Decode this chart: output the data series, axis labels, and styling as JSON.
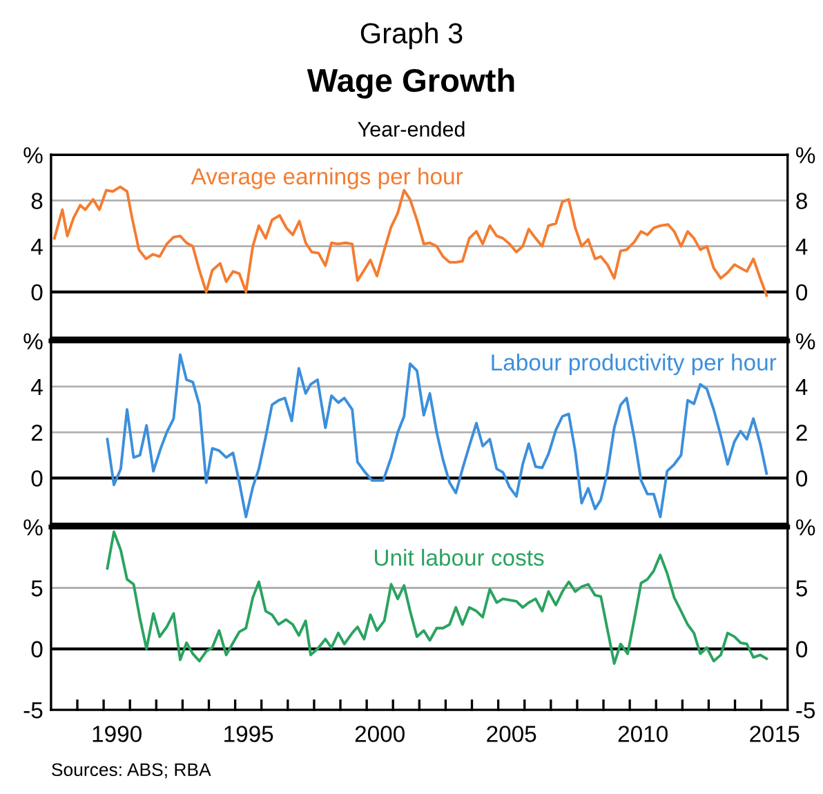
{
  "chart_data": [
    {
      "type": "line",
      "title": "Wage Growth",
      "subtitle": "Year-ended",
      "annotations": [
        "Graph 3"
      ],
      "xlim": [
        1988,
        2016
      ],
      "tick_labels": "y",
      "ylim": [
        -4,
        12
      ],
      "yticks": [
        0,
        4,
        8,
        {
          "value": 12,
          "label": "%"
        }
      ],
      "y2lim": [
        -4,
        12
      ],
      "y2ticks": [
        0,
        4,
        8,
        {
          "value": 12,
          "label": "%"
        }
      ],
      "grid": "y",
      "ref_lines": [
        {
          "axis": "y",
          "value": 0,
          "color": "#000000"
        }
      ],
      "series": [
        {
          "name": "Average earnings per hour",
          "color": "#f47c30",
          "x": [
            1988.13,
            1988.43,
            1988.62,
            1988.86,
            1989.11,
            1989.3,
            1989.6,
            1989.84,
            1990.1,
            1990.35,
            1990.63,
            1990.89,
            1991.08,
            1991.34,
            1991.61,
            1991.87,
            1992.13,
            1992.4,
            1992.66,
            1992.91,
            1993.15,
            1993.39,
            1993.64,
            1993.9,
            1994.13,
            1994.43,
            1994.66,
            1994.92,
            1995.16,
            1995.41,
            1995.67,
            1995.9,
            1996.16,
            1996.4,
            1996.69,
            1996.95,
            1997.19,
            1997.44,
            1997.68,
            1997.91,
            1998.17,
            1998.43,
            1998.66,
            1998.9,
            1999.2,
            1999.45,
            1999.65,
            1999.9,
            2000.14,
            2000.39,
            2000.67,
            2000.93,
            2001.18,
            2001.42,
            2001.65,
            2001.91,
            2002.17,
            2002.4,
            2002.66,
            2002.9,
            2003.15,
            2003.39,
            2003.64,
            2003.9,
            2004.17,
            2004.41,
            2004.68,
            2004.94,
            2005.18,
            2005.43,
            2005.69,
            2005.93,
            2006.16,
            2006.42,
            2006.67,
            2006.91,
            2007.19,
            2007.44,
            2007.68,
            2007.93,
            2008.17,
            2008.42,
            2008.68,
            2008.9,
            2009.15,
            2009.41,
            2009.65,
            2009.88,
            2010.18,
            2010.43,
            2010.67,
            2010.91,
            2011.16,
            2011.46,
            2011.69,
            2011.95,
            2012.2,
            2012.44,
            2012.68,
            2012.93,
            2013.19,
            2013.46,
            2013.72,
            2013.98,
            2014.21,
            2014.45,
            2014.7,
            2014.96,
            2015.2
          ],
          "values": [
            4.7,
            7.2,
            4.9,
            6.5,
            7.6,
            7.2,
            8.1,
            7.2,
            8.9,
            8.8,
            9.2,
            8.8,
            6.5,
            3.7,
            2.9,
            3.3,
            3.1,
            4.2,
            4.8,
            4.9,
            4.3,
            4.0,
            1.9,
            0,
            1.9,
            2.5,
            0.9,
            1.8,
            1.6,
            0,
            4.0,
            5.8,
            4.7,
            6.3,
            6.7,
            5.6,
            5.0,
            6.2,
            4.3,
            3.5,
            3.4,
            2.3,
            4.3,
            4.2,
            4.3,
            4.2,
            1.0,
            1.9,
            2.8,
            1.4,
            3.7,
            5.7,
            6.9,
            8.9,
            8.1,
            6.3,
            4.2,
            4.3,
            4.0,
            3.1,
            2.6,
            2.6,
            2.7,
            4.7,
            5.3,
            4.2,
            5.8,
            4.9,
            4.7,
            4.2,
            3.5,
            4.0,
            5.5,
            4.7,
            4.0,
            5.8,
            6.0,
            7.9,
            8.1,
            5.6,
            4.0,
            4.6,
            2.9,
            3.1,
            2.4,
            1.2,
            3.6,
            3.7,
            4.4,
            5.3,
            5.0,
            5.6,
            5.8,
            5.9,
            5.3,
            4.0,
            5.3,
            4.7,
            3.7,
            4.0,
            2.1,
            1.2,
            1.7,
            2.4,
            2.1,
            1.8,
            2.9,
            1.2,
            -0.3
          ]
        }
      ]
    },
    {
      "type": "line",
      "xlim": [
        1988,
        2016
      ],
      "tick_labels": "y",
      "ylim": [
        -2,
        6
      ],
      "yticks": [
        0,
        2,
        4,
        {
          "value": 6,
          "label": "%"
        }
      ],
      "y2lim": [
        -2,
        6
      ],
      "y2ticks": [
        0,
        2,
        4,
        {
          "value": 6,
          "label": "%"
        }
      ],
      "grid": "y",
      "ref_lines": [
        {
          "axis": "y",
          "value": 0,
          "color": "#000000"
        }
      ],
      "series": [
        {
          "name": "Labour productivity per hour",
          "color": "#3c8fdc",
          "x": [
            1990.14,
            1990.39,
            1990.65,
            1990.89,
            1991.14,
            1991.38,
            1991.63,
            1991.89,
            1992.17,
            1992.4,
            1992.66,
            1992.91,
            1993.15,
            1993.39,
            1993.64,
            1993.9,
            1994.13,
            1994.39,
            1994.66,
            1994.92,
            1995.16,
            1995.41,
            1995.67,
            1995.9,
            1996.16,
            1996.4,
            1996.65,
            1996.89,
            1997.15,
            1997.42,
            1997.68,
            1997.87,
            1998.13,
            1998.43,
            1998.66,
            1998.92,
            1999.15,
            1999.45,
            1999.65,
            1999.94,
            2000.2,
            2000.63,
            2000.93,
            2001.18,
            2001.42,
            2001.65,
            2001.91,
            2002.17,
            2002.4,
            2002.66,
            2002.9,
            2003.15,
            2003.39,
            2003.64,
            2003.9,
            2004.17,
            2004.41,
            2004.68,
            2004.94,
            2005.18,
            2005.43,
            2005.69,
            2005.93,
            2006.16,
            2006.42,
            2006.67,
            2006.91,
            2007.19,
            2007.44,
            2007.68,
            2007.93,
            2008.17,
            2008.42,
            2008.68,
            2008.9,
            2009.15,
            2009.41,
            2009.65,
            2009.88,
            2010.18,
            2010.43,
            2010.67,
            2010.91,
            2011.16,
            2011.42,
            2011.69,
            2011.95,
            2012.2,
            2012.44,
            2012.68,
            2012.93,
            2013.19,
            2013.46,
            2013.72,
            2013.98,
            2014.21,
            2014.45,
            2014.7,
            2014.96,
            2015.2
          ],
          "values": [
            1.7,
            -0.3,
            0.4,
            3.0,
            0.9,
            1.0,
            2.3,
            0.3,
            1.3,
            2.0,
            2.6,
            5.4,
            4.3,
            4.2,
            3.2,
            -0.2,
            1.3,
            1.2,
            0.9,
            1.1,
            -0.2,
            -1.7,
            -0.4,
            0.4,
            1.8,
            3.2,
            3.4,
            3.5,
            2.5,
            4.8,
            3.7,
            4.1,
            4.3,
            2.2,
            3.6,
            3.3,
            3.5,
            3.0,
            0.7,
            0.25,
            -0.1,
            -0.1,
            0.9,
            2.0,
            2.7,
            5.0,
            4.7,
            2.75,
            3.7,
            2.0,
            0.8,
            -0.2,
            -0.65,
            0.4,
            1.4,
            2.4,
            1.4,
            1.7,
            0.4,
            0.25,
            -0.4,
            -0.8,
            0.6,
            1.5,
            0.5,
            0.45,
            1.05,
            2.1,
            2.7,
            2.8,
            1.15,
            -1.1,
            -0.45,
            -1.35,
            -0.95,
            0.25,
            2.2,
            3.2,
            3.5,
            1.7,
            -0.1,
            -0.7,
            -0.7,
            -1.7,
            0.3,
            0.6,
            1.0,
            3.4,
            3.25,
            4.1,
            3.9,
            3.0,
            1.85,
            0.6,
            1.6,
            2.05,
            1.7,
            2.6,
            1.5,
            0.2
          ]
        }
      ]
    },
    {
      "type": "line",
      "annotations": [
        "Sources: ABS; RBA"
      ],
      "xlim": [
        1988,
        2016
      ],
      "xticks": [
        {
          "value": 1989,
          "label": null
        },
        {
          "value": 1990,
          "label": null
        },
        {
          "value": 1990.5,
          "label": "1990"
        },
        {
          "value": 1991,
          "label": null
        },
        {
          "value": 1992,
          "label": null
        },
        {
          "value": 1993,
          "label": null
        },
        {
          "value": 1994,
          "label": null
        },
        {
          "value": 1995,
          "label": null
        },
        {
          "value": 1995.5,
          "label": "1995"
        },
        {
          "value": 1996,
          "label": null
        },
        {
          "value": 1997,
          "label": null
        },
        {
          "value": 1998,
          "label": null
        },
        {
          "value": 1999,
          "label": null
        },
        {
          "value": 2000,
          "label": null
        },
        {
          "value": 2000.5,
          "label": "2000"
        },
        {
          "value": 2001,
          "label": null
        },
        {
          "value": 2002,
          "label": null
        },
        {
          "value": 2003,
          "label": null
        },
        {
          "value": 2004,
          "label": null
        },
        {
          "value": 2005,
          "label": null
        },
        {
          "value": 2005.5,
          "label": "2005"
        },
        {
          "value": 2006,
          "label": null
        },
        {
          "value": 2007,
          "label": null
        },
        {
          "value": 2008,
          "label": null
        },
        {
          "value": 2009,
          "label": null
        },
        {
          "value": 2010,
          "label": null
        },
        {
          "value": 2010.5,
          "label": "2010"
        },
        {
          "value": 2011,
          "label": null
        },
        {
          "value": 2012,
          "label": null
        },
        {
          "value": 2013,
          "label": null
        },
        {
          "value": 2014,
          "label": null
        },
        {
          "value": 2015,
          "label": null
        },
        {
          "value": 2015.5,
          "label": "2015"
        }
      ],
      "ylim": [
        -5,
        10
      ],
      "yticks": [
        -5,
        0,
        5,
        {
          "value": 10,
          "label": "%"
        }
      ],
      "y2lim": [
        -5,
        10
      ],
      "y2ticks": [
        -5,
        0,
        5,
        {
          "value": 10,
          "label": "%"
        }
      ],
      "ref_lines": [
        {
          "axis": "y",
          "value": 0,
          "color": "#000000"
        },
        {
          "axis": "y",
          "value": 5,
          "color": "#b0b0b0"
        }
      ],
      "series": [
        {
          "name": "Unit labour costs",
          "color": "#2aa360",
          "x": [
            1990.14,
            1990.39,
            1990.65,
            1990.89,
            1991.14,
            1991.38,
            1991.63,
            1991.89,
            1992.13,
            1992.4,
            1992.66,
            1992.91,
            1993.15,
            1993.39,
            1993.64,
            1993.9,
            1994.13,
            1994.39,
            1994.66,
            1994.92,
            1995.16,
            1995.41,
            1995.67,
            1995.9,
            1996.16,
            1996.4,
            1996.65,
            1996.93,
            1997.19,
            1997.42,
            1997.68,
            1997.87,
            1998.13,
            1998.43,
            1998.66,
            1998.92,
            1999.15,
            1999.45,
            1999.65,
            1999.9,
            2000.14,
            2000.39,
            2000.67,
            2000.93,
            2001.18,
            2001.42,
            2001.65,
            2001.91,
            2002.17,
            2002.4,
            2002.66,
            2002.9,
            2003.15,
            2003.39,
            2003.64,
            2003.9,
            2004.17,
            2004.41,
            2004.68,
            2004.94,
            2005.18,
            2005.43,
            2005.69,
            2005.93,
            2006.16,
            2006.42,
            2006.67,
            2006.91,
            2007.19,
            2007.44,
            2007.68,
            2007.93,
            2008.17,
            2008.42,
            2008.68,
            2008.9,
            2009.15,
            2009.41,
            2009.65,
            2009.92,
            2010.18,
            2010.43,
            2010.67,
            2010.91,
            2011.16,
            2011.42,
            2011.69,
            2011.95,
            2012.2,
            2012.44,
            2012.68,
            2012.93,
            2013.19,
            2013.46,
            2013.72,
            2013.98,
            2014.21,
            2014.45,
            2014.7,
            2014.96,
            2015.2
          ],
          "values": [
            6.6,
            9.6,
            8.1,
            5.7,
            5.3,
            2.5,
            0,
            2.9,
            1.0,
            1.8,
            2.9,
            -0.9,
            0.5,
            -0.4,
            -1.0,
            -0.2,
            0.1,
            1.5,
            -0.5,
            0.5,
            1.4,
            1.7,
            4.2,
            5.5,
            3.1,
            2.8,
            2.0,
            2.4,
            2.0,
            1.1,
            2.3,
            -0.5,
            0,
            0.8,
            0.1,
            1.3,
            0.4,
            1.3,
            1.8,
            0.8,
            2.8,
            1.5,
            2.3,
            5.3,
            4.1,
            5.2,
            3.1,
            1.0,
            1.5,
            0.7,
            1.7,
            1.7,
            2.0,
            3.4,
            2.0,
            3.4,
            3.1,
            2.6,
            4.9,
            3.8,
            4.1,
            4.0,
            3.9,
            3.4,
            3.8,
            4.1,
            3.1,
            4.7,
            3.6,
            4.7,
            5.5,
            4.7,
            5.1,
            5.3,
            4.4,
            4.3,
            1.6,
            -1.2,
            0.4,
            -0.4,
            2.5,
            5.4,
            5.7,
            6.4,
            7.7,
            6.2,
            4.2,
            3.1,
            2.0,
            1.3,
            -0.4,
            0.1,
            -1.0,
            -0.5,
            1.3,
            1.0,
            0.5,
            0.4,
            -0.7,
            -0.5,
            -0.8
          ]
        }
      ]
    }
  ]
}
